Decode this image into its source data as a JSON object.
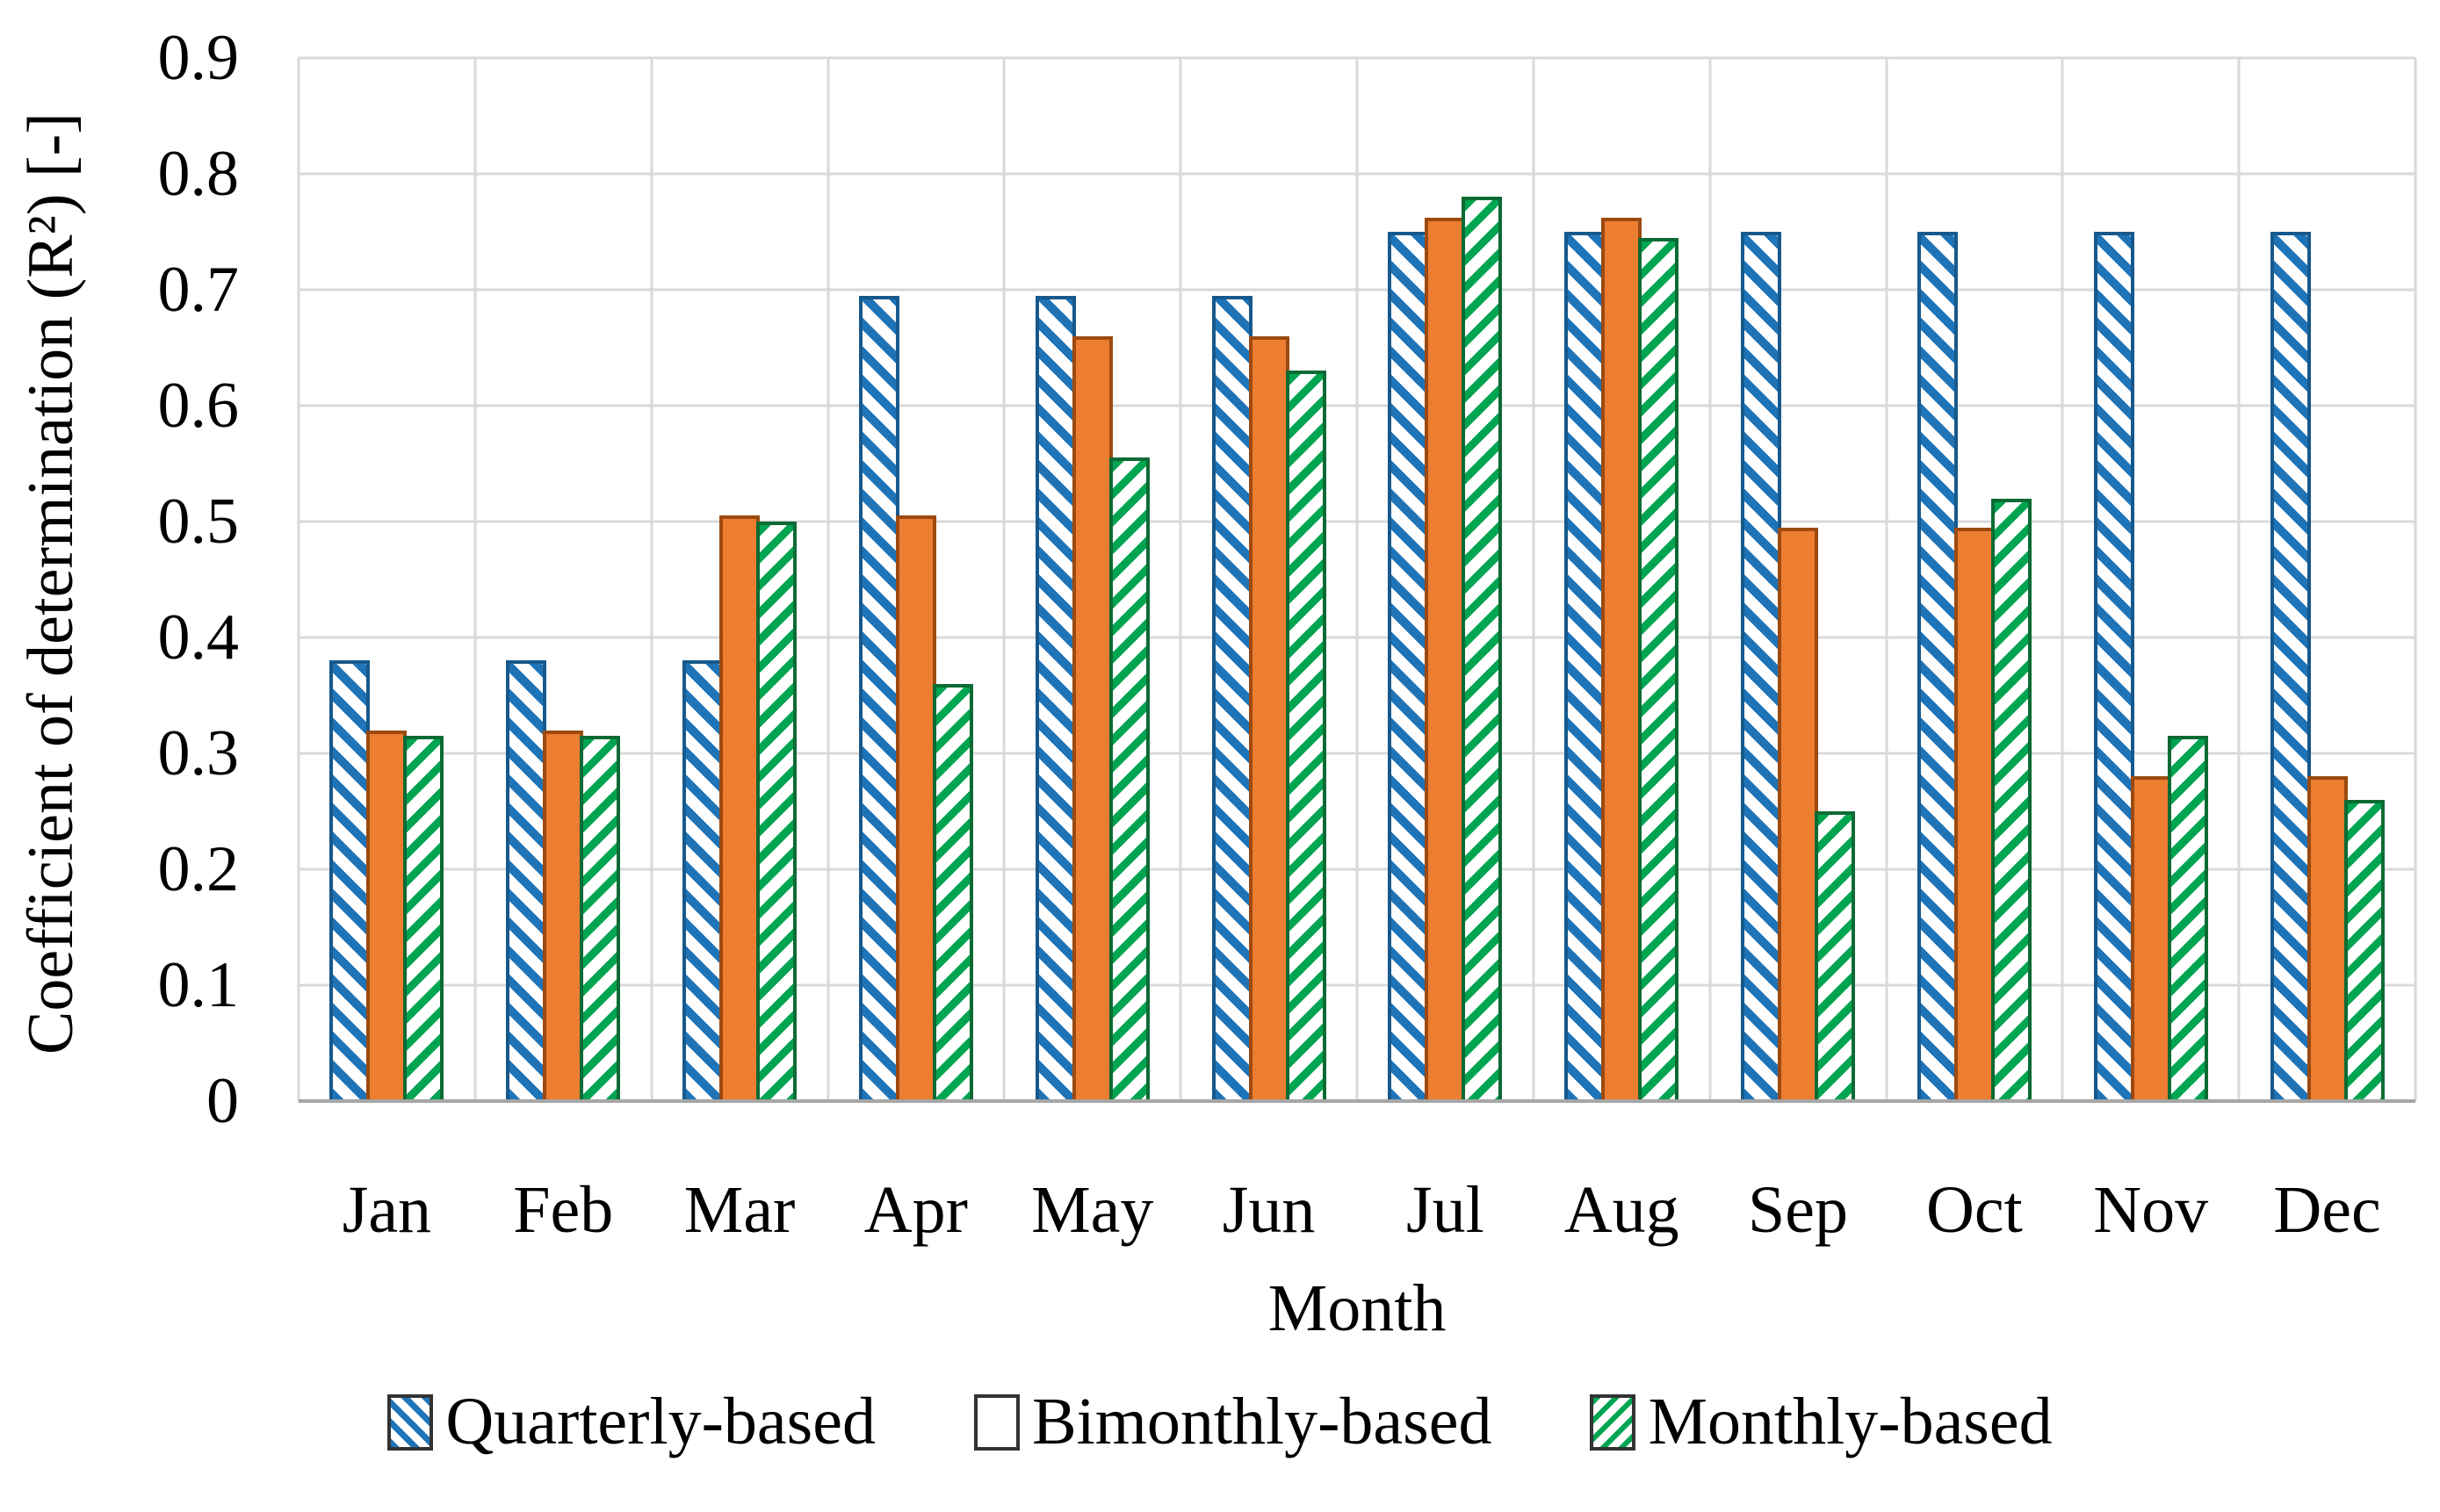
{
  "figure": {
    "y_axis": {
      "title": "Coefficient of determination (R²) [-]",
      "ticks": [
        "0.9",
        "0.8",
        "0.7",
        "0.6",
        "0.5",
        "0.4",
        "0.3",
        "0.2",
        "0.1",
        "0"
      ]
    },
    "x_axis": {
      "title": "Month"
    },
    "legend": [
      {
        "key": "quarterly",
        "label": "Quarterly-based"
      },
      {
        "key": "bimonthly",
        "label": "Bimonthly-based"
      },
      {
        "key": "monthly",
        "label": "Monthly-based"
      }
    ],
    "colors": {
      "quarterly_stripe": "#1F74B8",
      "quarterly_border": "#17598C",
      "bimonthly_fill": "#ED7D31",
      "bimonthly_border": "#9C4A10",
      "monthly_stripe": "#00A551",
      "monthly_border": "#0C6B34",
      "gridline": "#D9D9D9",
      "axis_line": "#A6A6A6",
      "text": "#000000"
    }
  },
  "chart_data": {
    "type": "bar",
    "categories": [
      "Jan",
      "Feb",
      "Mar",
      "Apr",
      "May",
      "Jun",
      "Jul",
      "Aug",
      "Sep",
      "Oct",
      "Nov",
      "Dec"
    ],
    "series": [
      {
        "key": "quarterly",
        "name": "Quarterly-based",
        "values": [
          0.38,
          0.38,
          0.38,
          0.695,
          0.695,
          0.695,
          0.75,
          0.75,
          0.75,
          0.75,
          0.75,
          0.75
        ]
      },
      {
        "key": "bimonthly",
        "name": "Bimonthly-based",
        "values": [
          0.32,
          0.32,
          0.505,
          0.505,
          0.66,
          0.66,
          0.762,
          0.762,
          0.495,
          0.495,
          0.28,
          0.28
        ]
      },
      {
        "key": "monthly",
        "name": "Monthly-based",
        "values": [
          0.315,
          0.315,
          0.5,
          0.36,
          0.555,
          0.63,
          0.78,
          0.745,
          0.25,
          0.52,
          0.315,
          0.26
        ]
      }
    ],
    "title": "",
    "xlabel": "Month",
    "ylabel": "Coefficient of determination (R²) [-]",
    "ylim": [
      0,
      0.9
    ],
    "ytick_step": 0.1,
    "grid": true,
    "legend_position": "bottom"
  }
}
